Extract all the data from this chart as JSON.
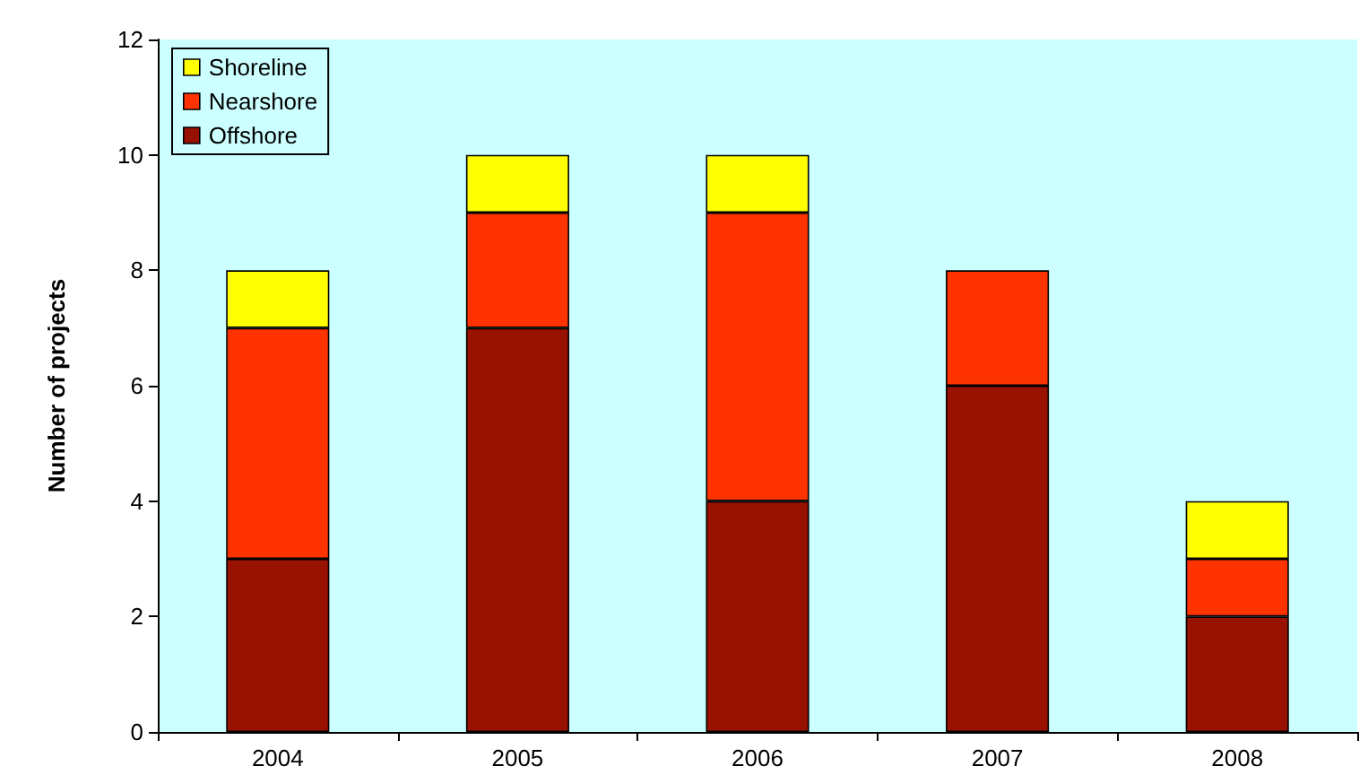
{
  "chart_data": {
    "type": "bar",
    "ylabel": "Number of projects",
    "categories": [
      "2004",
      "2005",
      "2006",
      "2007",
      "2008"
    ],
    "stacked": true,
    "series": [
      {
        "name": "Offshore",
        "color": "#991100",
        "values": [
          3,
          7,
          4,
          6,
          2
        ]
      },
      {
        "name": "Nearshore",
        "color": "#ff3300",
        "values": [
          4,
          2,
          5,
          2,
          1
        ]
      },
      {
        "name": "Shoreline",
        "color": "#ffff00",
        "values": [
          1,
          1,
          1,
          0,
          1
        ]
      }
    ],
    "ylim": [
      0,
      12
    ],
    "yticks": [
      0,
      2,
      4,
      6,
      8,
      10,
      12
    ],
    "grid": false,
    "legend": "top left"
  }
}
